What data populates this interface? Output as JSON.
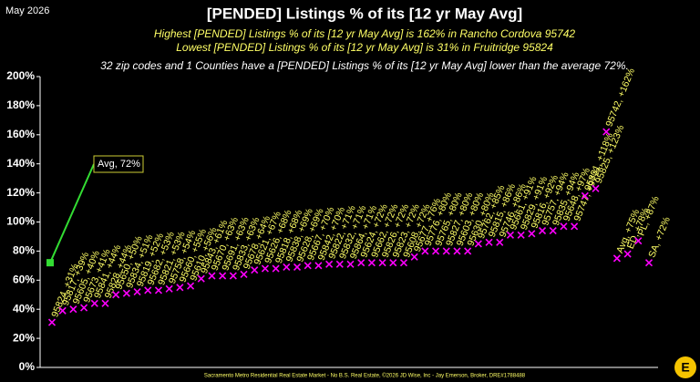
{
  "chart_data": {
    "type": "scatter",
    "date_label": "May 2026",
    "title": "[PENDED] Listings % of its [12 yr May Avg]",
    "subtitle_lines": [
      "Highest [PENDED] Listings % of its [12 yr May Avg] is 162% in Rancho Cordova 95742",
      "Lowest [PENDED] Listings % of its [12 yr May Avg] is 31% in Fruitridge 95824"
    ],
    "note": "32 zip codes and 1 Counties have a [PENDED] Listings % of its [12 yr May Avg] lower than the average 72%.",
    "footer": "Sacramento Metro Residential Real Estate Market - No B.S. Real Estate, ©2026 JD Wise, Inc - Jay Emerson, Broker, DRE#1788488",
    "color": "#ff00ff",
    "label_color": "#ffff66",
    "average": 72,
    "average_label": "Avg, 72%",
    "average_color": "#33dd33",
    "values": [
      31,
      39,
      40,
      41,
      44,
      44,
      50,
      51,
      52,
      53,
      53,
      54,
      55,
      56,
      61,
      63,
      63,
      63,
      64,
      67,
      68,
      68,
      69,
      69,
      70,
      70,
      71,
      71,
      71,
      72,
      72,
      72,
      72,
      72,
      76,
      80,
      80,
      80,
      80,
      80,
      85,
      86,
      86,
      91,
      91,
      92,
      94,
      94,
      97,
      97,
      118,
      123,
      162,
      75,
      78,
      87,
      72
    ],
    "value_labels": [
      "95824, +31%",
      "95817, +39%",
      "95605, +40%",
      "95673, +41%",
      "95841, +44%",
      "95828, +44%",
      "95650, +50%",
      "95834, +51%",
      "95819, +52%",
      "95682, +53%",
      "95821, +53%",
      "95758, +54%",
      "95660, +55%",
      "95610, +56%",
      "95843, +61%",
      "95670, +63%",
      "95691, +63%",
      "95833, +63%",
      "95678, +64%",
      "95621, +67%",
      "95626, +68%",
      "95818, +68%",
      "95838, +69%",
      "95628, +69%",
      "95667, +70%",
      "95842, +70%",
      "95822, +71%",
      "95832, +71%",
      "95864, +71%",
      "95624, +72%",
      "95662, +72%",
      "95826, +72%",
      "95823, +72%",
      "95608, +72%",
      "95677, +76%",
      "95776, +80%",
      "95765, +80%",
      "95827, +80%",
      "95603, +80%",
      "95630, +80%",
      "95762, +85%",
      "95815, +86%",
      "95746, +86%",
      "95661, +91%",
      "95829, +91%",
      "95816, +92%",
      "95757, +94%",
      "95835, +94%",
      "95648, +97%",
      "95747, +97%",
      "95831, +118%",
      "95825, +123%",
      "95742, +162%",
      "Avg, +75%",
      "ED, +78%",
      "PL, +87%",
      "SA, +72%"
    ],
    "ylim": [
      0,
      200
    ],
    "yticks": [
      {
        "value": 0,
        "label": "0%"
      },
      {
        "value": 20,
        "label": "20%"
      },
      {
        "value": 40,
        "label": "40%"
      },
      {
        "value": 60,
        "label": "60%"
      },
      {
        "value": 80,
        "label": "80%"
      },
      {
        "value": 100,
        "label": "100%"
      },
      {
        "value": 120,
        "label": "120%"
      },
      {
        "value": 140,
        "label": "140%"
      },
      {
        "value": 160,
        "label": "160%"
      },
      {
        "value": 180,
        "label": "180%"
      },
      {
        "value": 200,
        "label": "200%"
      }
    ]
  }
}
